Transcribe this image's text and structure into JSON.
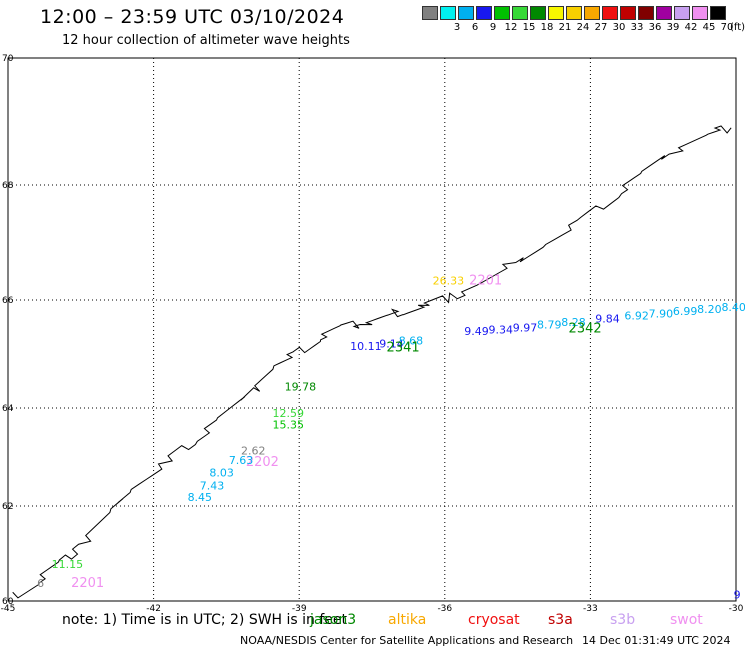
{
  "header": {
    "title": "12:00 – 23:59 UTC 03/10/2024",
    "subtitle": "12 hour collection of altimeter wave heights"
  },
  "color_scale": {
    "unit": "(ft)",
    "bins": [
      {
        "color": "#808080",
        "label": ""
      },
      {
        "color": "#00f0f0",
        "label": "3"
      },
      {
        "color": "#00b0f0",
        "label": "6"
      },
      {
        "color": "#1818f0",
        "label": "9"
      },
      {
        "color": "#00c000",
        "label": "12"
      },
      {
        "color": "#38d838",
        "label": "15"
      },
      {
        "color": "#008800",
        "label": "18"
      },
      {
        "color": "#f8f800",
        "label": "21"
      },
      {
        "color": "#f8d000",
        "label": "24"
      },
      {
        "color": "#f8a800",
        "label": "27"
      },
      {
        "color": "#f01010",
        "label": "30"
      },
      {
        "color": "#c00000",
        "label": "33"
      },
      {
        "color": "#800000",
        "label": "36"
      },
      {
        "color": "#a000a0",
        "label": "39"
      },
      {
        "color": "#c8a0f0",
        "label": "42"
      },
      {
        "color": "#f090f0",
        "label": "45"
      },
      {
        "color": "#000000",
        "label": "70"
      }
    ]
  },
  "map_data": {
    "lon_range": [
      -45,
      -30
    ],
    "lat_range": [
      60,
      70
    ],
    "lon_ticks": [
      -45,
      -42,
      -39,
      -36,
      -33,
      -30
    ],
    "lat_ticks": [
      70,
      68,
      66,
      64,
      62,
      60
    ],
    "lon_labels": [
      "-45",
      "-42",
      "-39",
      "-36",
      "-33",
      "-30"
    ],
    "lat_labels": [
      "70",
      "68",
      "66",
      "64",
      "62",
      "60"
    ],
    "grid": "dotted",
    "coastline": [
      [
        -44.8,
        60.1
      ],
      [
        -44.4,
        60.4
      ],
      [
        -43.9,
        60.8
      ],
      [
        -43.4,
        61.3
      ],
      [
        -42.9,
        61.9
      ],
      [
        -42.4,
        62.4
      ],
      [
        -41.7,
        62.9
      ],
      [
        -41.1,
        63.4
      ],
      [
        -40.6,
        63.8
      ],
      [
        -40.0,
        64.3
      ],
      [
        -39.5,
        64.8
      ],
      [
        -39.0,
        65.0
      ],
      [
        -38.6,
        65.3
      ],
      [
        -38.1,
        65.5
      ],
      [
        -37.6,
        65.6
      ],
      [
        -37.2,
        65.7
      ],
      [
        -36.8,
        65.8
      ],
      [
        -36.4,
        65.9
      ],
      [
        -35.9,
        66.05
      ],
      [
        -35.2,
        66.3
      ],
      [
        -34.6,
        66.6
      ],
      [
        -33.9,
        67.0
      ],
      [
        -33.1,
        67.4
      ],
      [
        -32.4,
        67.9
      ],
      [
        -31.9,
        68.2
      ],
      [
        -31.2,
        68.6
      ],
      [
        -30.6,
        68.8
      ],
      [
        -30.1,
        68.9
      ]
    ],
    "observations": [
      {
        "lon": -36.25,
        "lat": 66.27,
        "text": "26.33",
        "color": "#f8d000"
      },
      {
        "lon": -35.5,
        "lat": 66.27,
        "text": "2201",
        "color": "#f090f0",
        "size": 13
      },
      {
        "lon": -35.6,
        "lat": 65.35,
        "text": "9.49",
        "color": "#1818f0"
      },
      {
        "lon": -35.1,
        "lat": 65.38,
        "text": "9.34",
        "color": "#1818f0"
      },
      {
        "lon": -34.6,
        "lat": 65.42,
        "text": "9.97",
        "color": "#1818f0"
      },
      {
        "lon": -34.1,
        "lat": 65.47,
        "text": "8.79",
        "color": "#00b0f0"
      },
      {
        "lon": -33.6,
        "lat": 65.52,
        "text": "8.28",
        "color": "#00b0f0"
      },
      {
        "lon": -33.45,
        "lat": 65.4,
        "text": "2342",
        "color": "#008800",
        "size": 13
      },
      {
        "lon": -32.9,
        "lat": 65.58,
        "text": "9.84",
        "color": "#1818f0"
      },
      {
        "lon": -32.3,
        "lat": 65.64,
        "text": "6.92",
        "color": "#00b0f0"
      },
      {
        "lon": -31.8,
        "lat": 65.68,
        "text": "7.90",
        "color": "#00b0f0"
      },
      {
        "lon": -31.3,
        "lat": 65.72,
        "text": "6.99",
        "color": "#00b0f0"
      },
      {
        "lon": -30.8,
        "lat": 65.76,
        "text": "8.20",
        "color": "#00b0f0"
      },
      {
        "lon": -30.3,
        "lat": 65.8,
        "text": "8.40",
        "color": "#00b0f0"
      },
      {
        "lon": -37.95,
        "lat": 65.07,
        "text": "10.11",
        "color": "#1818f0"
      },
      {
        "lon": -37.35,
        "lat": 65.12,
        "text": "9.14",
        "color": "#1818f0"
      },
      {
        "lon": -36.95,
        "lat": 65.18,
        "text": "8.68",
        "color": "#00b0f0"
      },
      {
        "lon": -37.2,
        "lat": 65.05,
        "text": "2341",
        "color": "#008800",
        "size": 13
      },
      {
        "lon": -39.3,
        "lat": 64.32,
        "text": "19.78",
        "color": "#008800"
      },
      {
        "lon": -39.55,
        "lat": 63.82,
        "text": "12.59",
        "color": "#38d838"
      },
      {
        "lon": -39.55,
        "lat": 63.58,
        "text": "15.35",
        "color": "#00c000"
      },
      {
        "lon": -40.2,
        "lat": 63.05,
        "text": "2.62",
        "color": "#808080"
      },
      {
        "lon": -40.1,
        "lat": 62.82,
        "text": "2202",
        "color": "#f090f0",
        "size": 13
      },
      {
        "lon": -40.45,
        "lat": 62.86,
        "text": "7.63",
        "color": "#00b0f0"
      },
      {
        "lon": -40.85,
        "lat": 62.6,
        "text": "8.03",
        "color": "#00b0f0"
      },
      {
        "lon": -41.05,
        "lat": 62.34,
        "text": "7.43",
        "color": "#00b0f0"
      },
      {
        "lon": -41.3,
        "lat": 62.1,
        "text": "8.45",
        "color": "#00b0f0"
      },
      {
        "lon": -44.1,
        "lat": 60.7,
        "text": "11.15",
        "color": "#38d838"
      },
      {
        "lon": -44.4,
        "lat": 60.3,
        "text": "6",
        "color": "#808080"
      },
      {
        "lon": -43.7,
        "lat": 60.3,
        "text": "2201",
        "color": "#f090f0",
        "size": 13
      },
      {
        "lon": -30.05,
        "lat": 60.05,
        "text": "9",
        "color": "#1818f0"
      }
    ]
  },
  "footer": {
    "note": "note:  1) Time is in UTC;  2) SWH is in feet",
    "satellites": [
      {
        "name": "jason3",
        "color": "#008800"
      },
      {
        "name": "altika",
        "color": "#f8a800"
      },
      {
        "name": "cryosat",
        "color": "#f01010"
      },
      {
        "name": "s3a",
        "color": "#c00000"
      },
      {
        "name": "s3b",
        "color": "#c8a0f0"
      },
      {
        "name": "swot",
        "color": "#f090f0"
      }
    ],
    "credit": "NOAA/NESDIS Center for Satellite Applications and Research",
    "generated": "14 Dec 01:31:49 UTC 2024"
  }
}
